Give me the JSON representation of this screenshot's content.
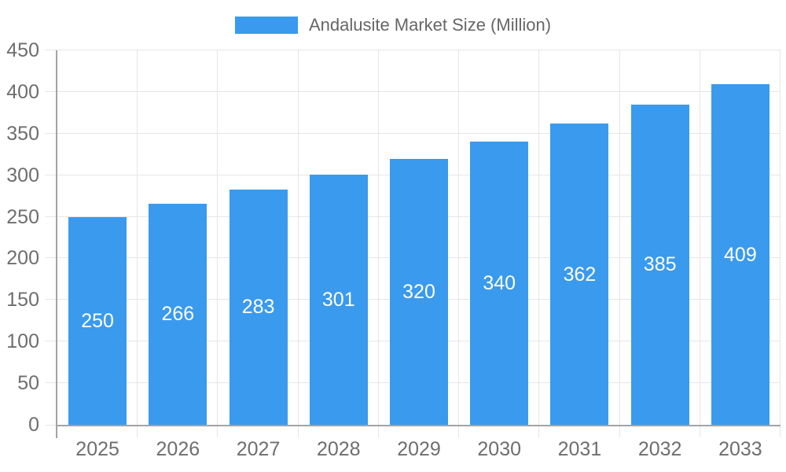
{
  "chart_data": {
    "type": "bar",
    "title": "Andalusite Market Size (Million)",
    "categories": [
      "2025",
      "2026",
      "2027",
      "2028",
      "2029",
      "2030",
      "2031",
      "2032",
      "2033"
    ],
    "series": [
      {
        "name": "Andalusite Market Size (Million)",
        "values": [
          250,
          266,
          283,
          301,
          320,
          340,
          362,
          385,
          409
        ]
      }
    ],
    "xlabel": "",
    "ylabel": "",
    "ylim": [
      0,
      450
    ],
    "yticks": [
      0,
      50,
      100,
      150,
      200,
      250,
      300,
      350,
      400,
      450
    ],
    "grid": "horizontal gridlines at each y tick and vertical gridlines at category boundaries",
    "legend_position": "top-center",
    "value_labels": "white numbers centered vertically inside each bar"
  },
  "legend": {
    "label": "Andalusite Market Size (Million)"
  },
  "colors": {
    "bar": "#3A9AED",
    "grid": "#E6E6E6",
    "axis_line": "#A3A3A3",
    "tick_label": "#6E6E6E",
    "legend_text": "#666666",
    "bar_value_label": "#FFFFFF",
    "background": "#FFFFFF"
  }
}
